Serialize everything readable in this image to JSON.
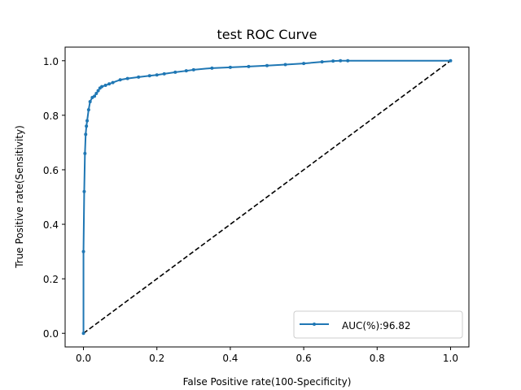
{
  "chart_data": {
    "type": "line",
    "title": "test ROC Curve",
    "xlabel": "False Positive rate(100-Specificity)",
    "ylabel": "True Positive rate(Sensitivity)",
    "xlim": [
      -0.05,
      1.05
    ],
    "ylim": [
      -0.05,
      1.05
    ],
    "xticks": [
      "0.0",
      "0.2",
      "0.4",
      "0.6",
      "0.8",
      "1.0"
    ],
    "yticks": [
      "0.0",
      "0.2",
      "0.4",
      "0.6",
      "0.8",
      "1.0"
    ],
    "xtick_values": [
      0,
      0.2,
      0.4,
      0.6,
      0.8,
      1.0
    ],
    "ytick_values": [
      0,
      0.2,
      0.4,
      0.6,
      0.8,
      1.0
    ],
    "grid": false,
    "legend_position": "lower-right",
    "colors": {
      "series": "#1f77b4",
      "baseline": "#000000"
    },
    "series": [
      {
        "name": "AUC(%):96.82",
        "style": "solid-with-dot-markers",
        "x": [
          0,
          0,
          0.002,
          0.004,
          0.006,
          0.008,
          0.01,
          0.014,
          0.018,
          0.024,
          0.03,
          0.035,
          0.04,
          0.045,
          0.05,
          0.06,
          0.07,
          0.08,
          0.1,
          0.12,
          0.15,
          0.18,
          0.2,
          0.22,
          0.25,
          0.28,
          0.3,
          0.35,
          0.4,
          0.45,
          0.5,
          0.55,
          0.6,
          0.65,
          0.68,
          0.7,
          0.72,
          1.0
        ],
        "y": [
          0,
          0.3,
          0.52,
          0.66,
          0.73,
          0.76,
          0.78,
          0.82,
          0.85,
          0.865,
          0.87,
          0.88,
          0.89,
          0.9,
          0.905,
          0.91,
          0.915,
          0.92,
          0.93,
          0.935,
          0.94,
          0.945,
          0.948,
          0.952,
          0.958,
          0.963,
          0.967,
          0.973,
          0.976,
          0.979,
          0.982,
          0.986,
          0.99,
          0.996,
          0.999,
          1.0,
          1.0,
          1.0
        ]
      }
    ],
    "baseline": {
      "x": [
        0,
        1
      ],
      "y": [
        0,
        1
      ],
      "style": "dashed"
    }
  }
}
